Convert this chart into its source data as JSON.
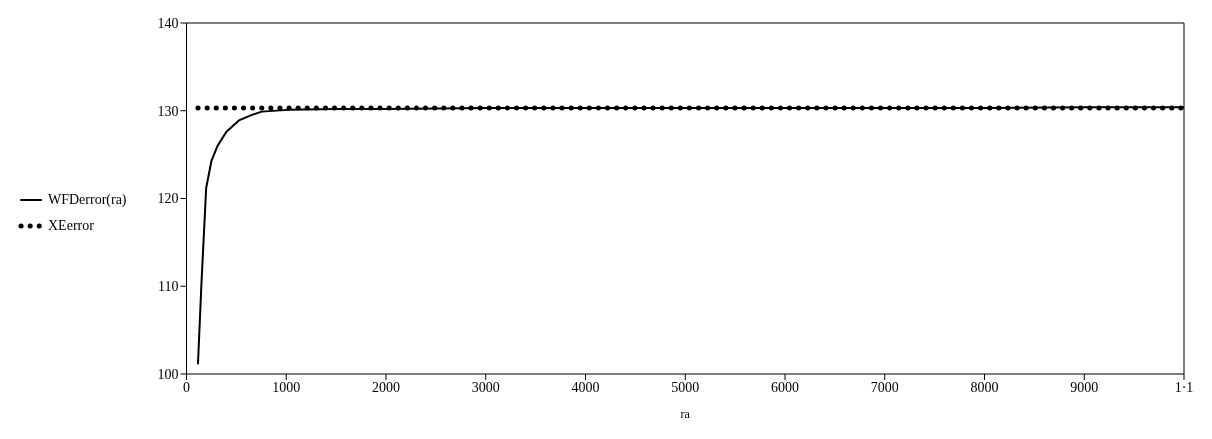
{
  "chart_data": {
    "type": "line",
    "xlabel": "ra",
    "xlim": [
      0,
      10000
    ],
    "xticks": [
      0,
      1000,
      2000,
      3000,
      4000,
      5000,
      6000,
      7000,
      8000,
      9000,
      {
        "value": 10000,
        "label": "1·1"
      }
    ],
    "ylim": [
      100,
      140
    ],
    "yticks": [
      100,
      110,
      120,
      130,
      140
    ],
    "grid": false,
    "legend": "left",
    "marker": "none",
    "series": [
      {
        "name": "WFDerror(ra)",
        "color": "#000000",
        "line_style": "solid",
        "x": [
          115,
          148,
          197,
          250,
          311,
          400,
          525,
          650,
          754,
          1016,
          1500,
          2000,
          3000,
          4000,
          5000,
          6000,
          7000,
          8000,
          9000,
          10000
        ],
        "values": [
          101.2,
          109.9,
          121.2,
          124.3,
          126,
          127.6,
          128.9,
          129.5,
          129.9,
          130.1,
          130.2,
          130.2,
          130.3,
          130.3,
          130.3,
          130.3,
          130.3,
          130.3,
          130.4,
          130.4
        ]
      },
      {
        "name": "XEerror",
        "color": "#000000",
        "line_style": "dotted",
        "x": [
          115,
          10000
        ],
        "values": [
          130.3,
          130.3
        ]
      }
    ]
  }
}
